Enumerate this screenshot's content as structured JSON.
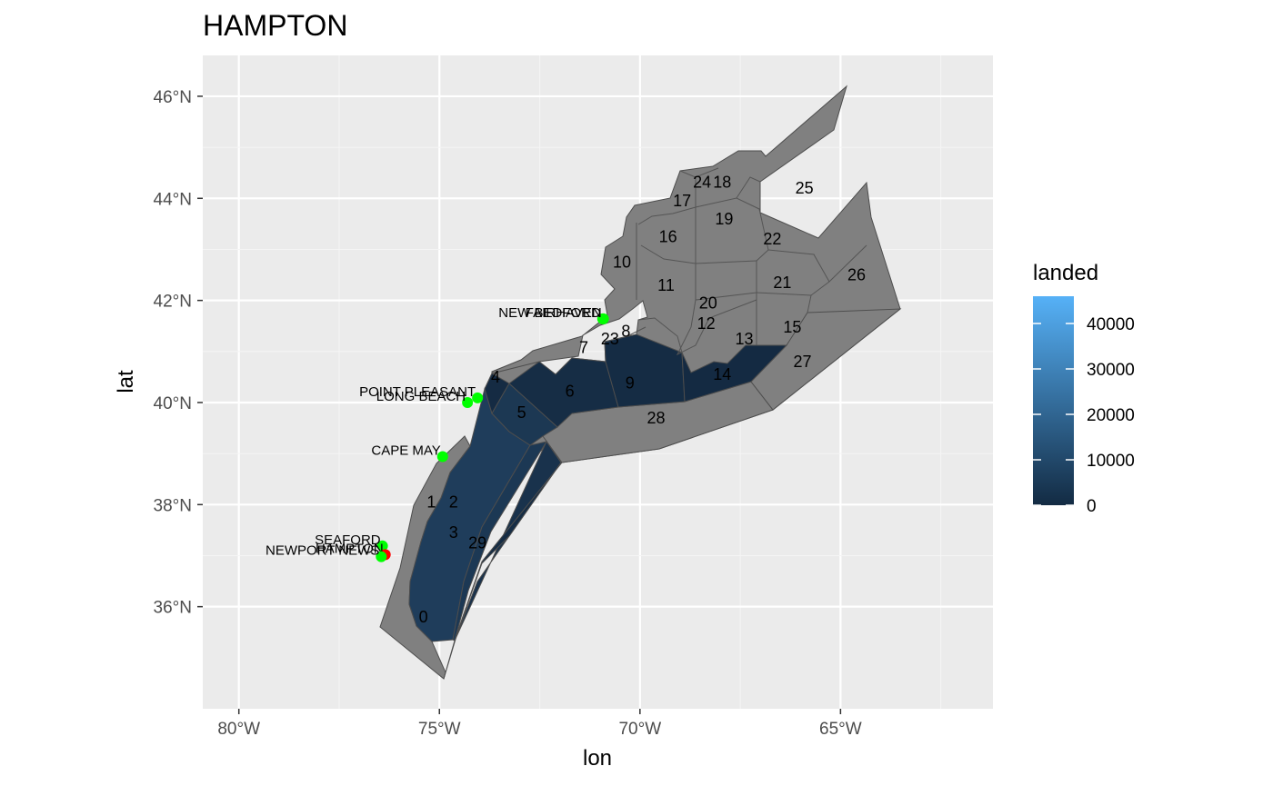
{
  "title": "HAMPTON",
  "chart_data": {
    "type": "map",
    "title": "HAMPTON",
    "xlabel": "lon",
    "ylabel": "lat",
    "xlim": [
      -80.9,
      -61.2
    ],
    "ylim": [
      34.0,
      46.8
    ],
    "x_ticks": [
      {
        "value": -80,
        "label": "80°W"
      },
      {
        "value": -75,
        "label": "75°W"
      },
      {
        "value": -70,
        "label": "70°W"
      },
      {
        "value": -65,
        "label": "65°W"
      }
    ],
    "y_ticks": [
      {
        "value": 36,
        "label": "36°N"
      },
      {
        "value": 38,
        "label": "38°N"
      },
      {
        "value": 40,
        "label": "40°N"
      },
      {
        "value": 42,
        "label": "42°N"
      },
      {
        "value": 44,
        "label": "44°N"
      },
      {
        "value": 46,
        "label": "46°N"
      }
    ],
    "grid": true,
    "legend": {
      "title": "landed",
      "placement": "right",
      "type": "continuous-gradient",
      "low_color": "#132B43",
      "high_color": "#56B1F7",
      "range": [
        0,
        46000
      ],
      "ticks": [
        {
          "value": 0,
          "label": "0"
        },
        {
          "value": 10000,
          "label": "10000"
        },
        {
          "value": 20000,
          "label": "20000"
        },
        {
          "value": 30000,
          "label": "30000"
        },
        {
          "value": 40000,
          "label": "40000"
        }
      ]
    },
    "na_color": "#808080",
    "boundary_color": "#4d4d4d",
    "areas": [
      {
        "label": "0",
        "lon": -75.4,
        "lat": 35.8,
        "landed": null
      },
      {
        "label": "1",
        "lon": -75.2,
        "lat": 38.05,
        "landed": 6000
      },
      {
        "label": "2",
        "lon": -74.65,
        "lat": 38.05,
        "landed": 5000
      },
      {
        "label": "3",
        "lon": -74.65,
        "lat": 37.45,
        "landed": 4000
      },
      {
        "label": "29",
        "lon": -74.05,
        "lat": 37.25,
        "landed": 2000
      },
      {
        "label": "4",
        "lon": -73.6,
        "lat": 40.5,
        "landed": 1000
      },
      {
        "label": "5",
        "lon": -72.95,
        "lat": 39.8,
        "landed": 4000
      },
      {
        "label": "6",
        "lon": -71.75,
        "lat": 40.22,
        "landed": 2000
      },
      {
        "label": "7",
        "lon": -71.4,
        "lat": 41.08,
        "landed": null
      },
      {
        "label": "8",
        "lon": -70.35,
        "lat": 41.4,
        "landed": null
      },
      {
        "label": "9",
        "lon": -70.25,
        "lat": 40.38,
        "landed": 1000
      },
      {
        "label": "10",
        "lon": -70.45,
        "lat": 42.75,
        "landed": null
      },
      {
        "label": "11",
        "lon": -69.35,
        "lat": 42.3,
        "landed": null
      },
      {
        "label": "12",
        "lon": -68.35,
        "lat": 41.55,
        "landed": null
      },
      {
        "label": "13",
        "lon": -67.4,
        "lat": 41.25,
        "landed": null
      },
      {
        "label": "14",
        "lon": -67.95,
        "lat": 40.55,
        "landed": 500
      },
      {
        "label": "15",
        "lon": -66.2,
        "lat": 41.48,
        "landed": null
      },
      {
        "label": "16",
        "lon": -69.3,
        "lat": 43.25,
        "landed": null
      },
      {
        "label": "17",
        "lon": -68.95,
        "lat": 43.95,
        "landed": null
      },
      {
        "label": "18",
        "lon": -67.95,
        "lat": 44.32,
        "landed": null
      },
      {
        "label": "19",
        "lon": -67.9,
        "lat": 43.6,
        "landed": null
      },
      {
        "label": "20",
        "lon": -68.3,
        "lat": 41.95,
        "landed": null
      },
      {
        "label": "21",
        "lon": -66.45,
        "lat": 42.35,
        "landed": null
      },
      {
        "label": "22",
        "lon": -66.7,
        "lat": 43.2,
        "landed": null
      },
      {
        "label": "23",
        "lon": -70.75,
        "lat": 41.25,
        "landed": null
      },
      {
        "label": "24",
        "lon": -68.45,
        "lat": 44.32,
        "landed": null
      },
      {
        "label": "25",
        "lon": -65.9,
        "lat": 44.2,
        "landed": null
      },
      {
        "label": "26",
        "lon": -64.6,
        "lat": 42.5,
        "landed": null
      },
      {
        "label": "27",
        "lon": -65.95,
        "lat": 40.8,
        "landed": null
      },
      {
        "label": "28",
        "lon": -69.6,
        "lat": 39.7,
        "landed": null
      }
    ],
    "ports": [
      {
        "name": "NEW BEDFORD",
        "lon": -70.93,
        "lat": 41.64,
        "color": "#00ff00"
      },
      {
        "name": "FAIRHAVEN",
        "lon": -70.91,
        "lat": 41.64,
        "color": "#00ff00"
      },
      {
        "name": "POINT PLEASANT",
        "lon": -74.05,
        "lat": 40.09,
        "color": "#00ff00"
      },
      {
        "name": "LONG BEACH",
        "lon": -74.3,
        "lat": 40.0,
        "color": "#00ff00"
      },
      {
        "name": "CAPE MAY",
        "lon": -74.92,
        "lat": 38.94,
        "color": "#00ff00"
      },
      {
        "name": "SEAFORD",
        "lon": -76.42,
        "lat": 37.19,
        "color": "#00ff00"
      },
      {
        "name": "HAMPTON",
        "lon": -76.35,
        "lat": 37.02,
        "color": "#ff0000"
      },
      {
        "name": "NEWPORT NEWS",
        "lon": -76.45,
        "lat": 36.98,
        "color": "#00ff00"
      }
    ]
  }
}
